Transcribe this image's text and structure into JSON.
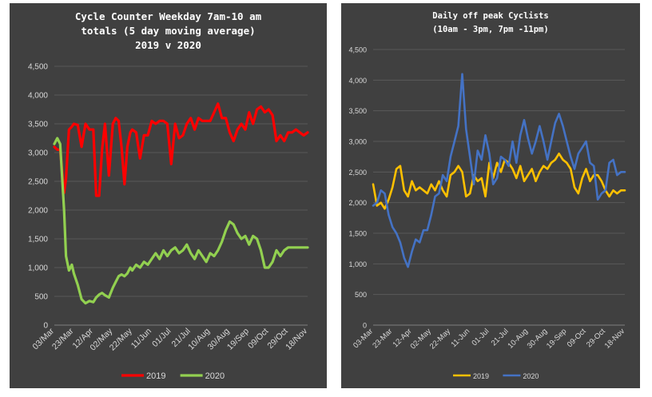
{
  "charts": [
    {
      "title_lines": [
        "Cycle Counter Weekday 7am-10 am",
        "totals (5 day moving average)",
        "2019 v 2020"
      ],
      "chart_data": {
        "type": "line",
        "title": "Cycle Counter Weekday 7am-10 am totals (5 day moving average) 2019 v 2020",
        "xlabel": "",
        "ylabel": "",
        "ylim": [
          0,
          4500
        ],
        "yticks": [
          0,
          500,
          1000,
          1500,
          2000,
          2500,
          3000,
          3500,
          4000,
          4500
        ],
        "ytick_labels": [
          "0",
          "500",
          "1,000",
          "1,500",
          "2,000",
          "2,500",
          "3,000",
          "3,500",
          "4,000",
          "4,500"
        ],
        "categories": [
          "03/Mar",
          "23/Mar",
          "12/Apr",
          "02/May",
          "22/May",
          "11/Jun",
          "01/Jul",
          "21/Jul",
          "10/Aug",
          "30/Aug",
          "19/Sep",
          "09/Oct",
          "29/Oct",
          "18/Nov"
        ],
        "grid": true,
        "legend": "bottom",
        "series": [
          {
            "name": "2019",
            "color": "#ff0000",
            "x": [
              0,
              0.15,
              0.3,
              0.5,
              0.6,
              0.75,
              0.9,
              1.0,
              1.2,
              1.4,
              1.6,
              1.8,
              2.0,
              2.15,
              2.3,
              2.45,
              2.6,
              2.8,
              3.0,
              3.15,
              3.3,
              3.45,
              3.6,
              3.75,
              3.9,
              4.0,
              4.2,
              4.4,
              4.6,
              4.8,
              5.0,
              5.2,
              5.4,
              5.6,
              5.8,
              6.0,
              6.2,
              6.4,
              6.6,
              6.8,
              7.0,
              7.2,
              7.4,
              7.6,
              7.8,
              8.0,
              8.2,
              8.4,
              8.6,
              8.8,
              9.0,
              9.2,
              9.4,
              9.6,
              9.8,
              10.0,
              10.2,
              10.4,
              10.6,
              10.8,
              11.0,
              11.2,
              11.4,
              11.6,
              11.8,
              12.0,
              12.2,
              12.4,
              12.6,
              12.8,
              13.0
            ],
            "values": [
              3100,
              3050,
              3050,
              2300,
              2550,
              3400,
              3450,
              3500,
              3480,
              3100,
              3500,
              3400,
              3400,
              2250,
              2250,
              3050,
              3500,
              2600,
              3500,
              3600,
              3550,
              3100,
              2450,
              3100,
              3350,
              3400,
              3350,
              2900,
              3300,
              3300,
              3550,
              3500,
              3550,
              3550,
              3500,
              2800,
              3500,
              3250,
              3300,
              3500,
              3600,
              3400,
              3600,
              3550,
              3550,
              3550,
              3700,
              3850,
              3600,
              3600,
              3350,
              3200,
              3400,
              3500,
              3400,
              3700,
              3500,
              3750,
              3800,
              3700,
              3750,
              3650,
              3200,
              3300,
              3200,
              3350,
              3350,
              3400,
              3350,
              3300,
              3350
            ]
          },
          {
            "name": "2020",
            "color": "#92d050",
            "x": [
              0,
              0.15,
              0.3,
              0.5,
              0.6,
              0.75,
              0.9,
              1.0,
              1.2,
              1.4,
              1.6,
              1.8,
              2.0,
              2.15,
              2.3,
              2.45,
              2.6,
              2.8,
              3.0,
              3.15,
              3.3,
              3.45,
              3.6,
              3.75,
              3.9,
              4.0,
              4.2,
              4.4,
              4.6,
              4.8,
              5.0,
              5.2,
              5.4,
              5.6,
              5.8,
              6.0,
              6.2,
              6.4,
              6.6,
              6.8,
              7.0,
              7.2,
              7.4,
              7.6,
              7.8,
              8.0,
              8.2,
              8.4,
              8.6,
              8.8,
              9.0,
              9.2,
              9.4,
              9.6,
              9.8,
              10.0,
              10.2,
              10.4,
              10.6,
              10.8,
              11.0,
              11.2,
              11.4,
              11.6,
              11.8,
              12.0,
              12.2,
              12.4,
              12.6,
              12.8,
              13.0
            ],
            "values": [
              3150,
              3250,
              3150,
              2000,
              1200,
              950,
              1050,
              900,
              700,
              450,
              380,
              420,
              400,
              480,
              530,
              560,
              520,
              480,
              650,
              750,
              850,
              880,
              850,
              900,
              1000,
              950,
              1050,
              1000,
              1100,
              1050,
              1150,
              1250,
              1150,
              1300,
              1200,
              1300,
              1350,
              1250,
              1300,
              1400,
              1250,
              1150,
              1300,
              1200,
              1100,
              1250,
              1200,
              1300,
              1450,
              1650,
              1800,
              1750,
              1600,
              1500,
              1550,
              1400,
              1550,
              1500,
              1300,
              1000,
              1000,
              1100,
              1300,
              1200,
              1300,
              1350,
              1350,
              1350,
              1350,
              1350,
              1350
            ]
          }
        ]
      },
      "legend": [
        {
          "name": "2019",
          "color": "#ff0000"
        },
        {
          "name": "2020",
          "color": "#92d050"
        }
      ]
    },
    {
      "title_lines": [
        "Daily off peak Cyclists",
        "(10am - 3pm, 7pm -11pm)"
      ],
      "chart_data": {
        "type": "line",
        "title": "Daily off peak Cyclists (10am - 3pm, 7pm -11pm)",
        "xlabel": "",
        "ylabel": "",
        "ylim": [
          0,
          4500
        ],
        "yticks": [
          0,
          500,
          1000,
          1500,
          2000,
          2500,
          3000,
          3500,
          4000,
          4500
        ],
        "ytick_labels": [
          "0",
          "500",
          "1,000",
          "1,500",
          "2,000",
          "2,500",
          "3,000",
          "3,500",
          "4,000",
          "4,500"
        ],
        "categories": [
          "03-Mar",
          "23-Mar",
          "12-Apr",
          "02-May",
          "22-May",
          "11-Jun",
          "01-Jul",
          "21-Jul",
          "10-Aug",
          "30-Aug",
          "19-Sep",
          "09-Oct",
          "29-Oct",
          "18-Nov"
        ],
        "grid": true,
        "legend": "bottom",
        "series": [
          {
            "name": "2019",
            "color": "#ffc000",
            "x": [
              0,
              0.2,
              0.4,
              0.6,
              0.8,
              1.0,
              1.2,
              1.4,
              1.6,
              1.8,
              2.0,
              2.2,
              2.4,
              2.6,
              2.8,
              3.0,
              3.2,
              3.4,
              3.6,
              3.8,
              4.0,
              4.2,
              4.4,
              4.6,
              4.8,
              5.0,
              5.2,
              5.4,
              5.6,
              5.8,
              6.0,
              6.2,
              6.4,
              6.6,
              6.8,
              7.0,
              7.2,
              7.4,
              7.6,
              7.8,
              8.0,
              8.2,
              8.4,
              8.6,
              8.8,
              9.0,
              9.2,
              9.4,
              9.6,
              9.8,
              10.0,
              10.2,
              10.4,
              10.6,
              10.8,
              11.0,
              11.2,
              11.4,
              11.6,
              11.8,
              12.0,
              12.2,
              12.4,
              12.6,
              12.8,
              13.0
            ],
            "values": [
              2300,
              1950,
              2000,
              1900,
              2050,
              2250,
              2550,
              2600,
              2200,
              2100,
              2350,
              2200,
              2250,
              2200,
              2150,
              2300,
              2200,
              2350,
              2200,
              2100,
              2450,
              2500,
              2600,
              2500,
              2100,
              2150,
              2450,
              2350,
              2400,
              2100,
              2650,
              2400,
              2650,
              2500,
              2700,
              2650,
              2550,
              2400,
              2600,
              2350,
              2450,
              2550,
              2350,
              2500,
              2600,
              2550,
              2650,
              2700,
              2800,
              2700,
              2650,
              2550,
              2250,
              2150,
              2400,
              2550,
              2350,
              2450,
              2450,
              2350,
              2200,
              2100,
              2200,
              2150,
              2200,
              2200
            ]
          },
          {
            "name": "2020",
            "color": "#4472c4",
            "x": [
              0,
              0.2,
              0.4,
              0.6,
              0.8,
              1.0,
              1.2,
              1.4,
              1.6,
              1.8,
              2.0,
              2.2,
              2.4,
              2.6,
              2.8,
              3.0,
              3.2,
              3.4,
              3.6,
              3.8,
              4.0,
              4.2,
              4.4,
              4.6,
              4.8,
              5.0,
              5.2,
              5.4,
              5.6,
              5.8,
              6.0,
              6.2,
              6.4,
              6.6,
              6.8,
              7.0,
              7.2,
              7.4,
              7.6,
              7.8,
              8.0,
              8.2,
              8.4,
              8.6,
              8.8,
              9.0,
              9.2,
              9.4,
              9.6,
              9.8,
              10.0,
              10.2,
              10.4,
              10.6,
              10.8,
              11.0,
              11.2,
              11.4,
              11.6,
              11.8,
              12.0,
              12.2,
              12.4,
              12.6,
              12.8,
              13.0
            ],
            "values": [
              1950,
              2000,
              2200,
              2150,
              1800,
              1600,
              1500,
              1350,
              1100,
              950,
              1200,
              1400,
              1350,
              1550,
              1550,
              1800,
              2100,
              2150,
              2450,
              2350,
              2750,
              3000,
              3250,
              4100,
              3200,
              2750,
              2300,
              2850,
              2700,
              3100,
              2800,
              2300,
              2400,
              2750,
              2700,
              2600,
              3000,
              2650,
              3100,
              3350,
              3050,
              2800,
              3000,
              3250,
              3000,
              2700,
              3000,
              3300,
              3450,
              3250,
              3000,
              2750,
              2550,
              2800,
              2900,
              3000,
              2650,
              2600,
              2050,
              2150,
              2200,
              2650,
              2700,
              2450,
              2500,
              2500
            ]
          }
        ]
      },
      "legend": [
        {
          "name": "2019",
          "color": "#ffc000"
        },
        {
          "name": "2020",
          "color": "#4472c4"
        }
      ]
    }
  ]
}
